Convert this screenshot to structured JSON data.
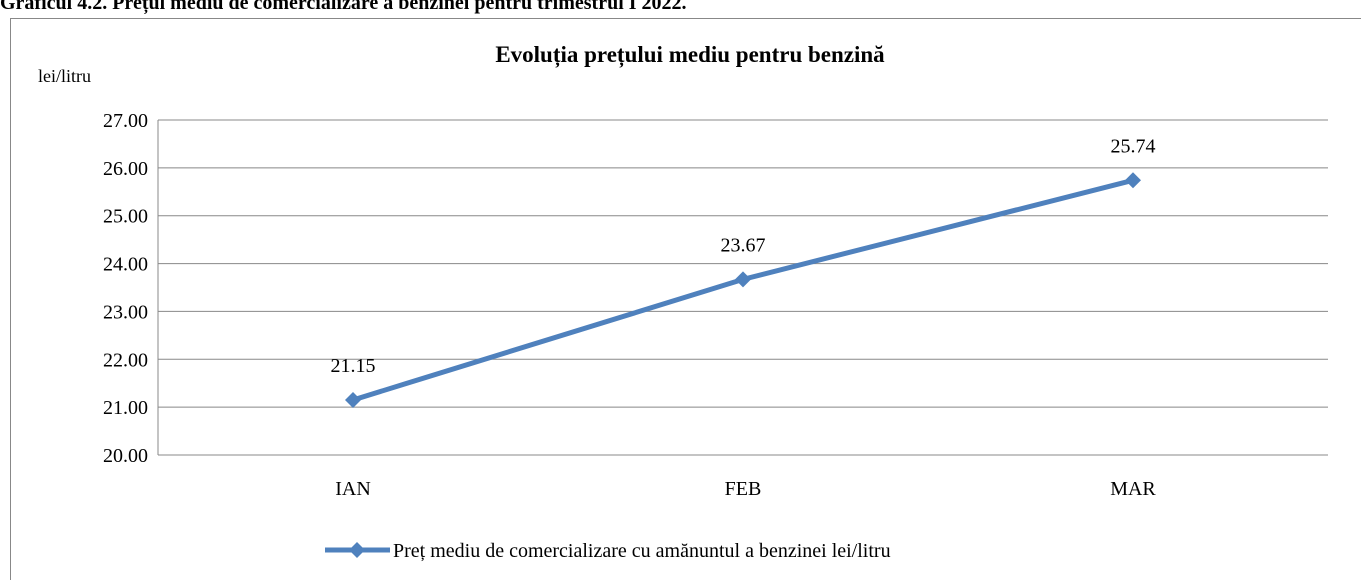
{
  "caption": "Graficul 4.2. Prețul mediu de comercializare a benzinei pentru trimestrul I 2022.",
  "chart_data": {
    "type": "line",
    "title": "Evoluția prețului mediu pentru benzină",
    "y_label": "lei/litru",
    "categories": [
      "IAN",
      "FEB",
      "MAR"
    ],
    "series": [
      {
        "name": "Preț mediu de comercializare cu amănuntul a benzinei lei/litru",
        "color": "#4f81bd",
        "values": [
          21.15,
          23.67,
          25.74
        ]
      }
    ],
    "ylim": [
      20,
      27
    ],
    "yticks": [
      {
        "value": 20,
        "label": "20.00"
      },
      {
        "value": 21,
        "label": "21.00"
      },
      {
        "value": 22,
        "label": "22.00"
      },
      {
        "value": 23,
        "label": "23.00"
      },
      {
        "value": 24,
        "label": "24.00"
      },
      {
        "value": 25,
        "label": "25.00"
      },
      {
        "value": 26,
        "label": "26.00"
      },
      {
        "value": 27,
        "label": "27.00"
      }
    ],
    "grid": true,
    "legend": "bottom"
  }
}
